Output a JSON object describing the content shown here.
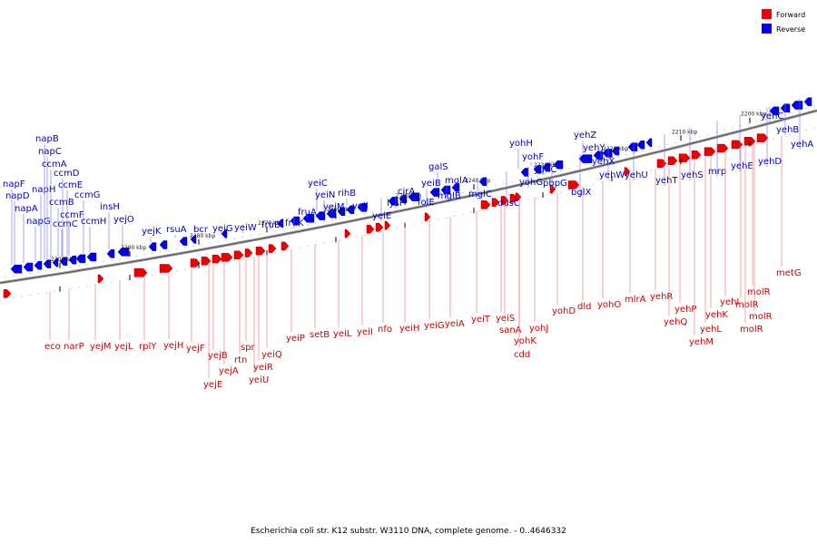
{
  "legend": [
    {
      "label": "Forward",
      "color": "#ee0000"
    },
    {
      "label": "Reverse",
      "color": "#0000ee"
    }
  ],
  "caption": "Escherichia coli str. K12 substr. W3110 DNA, complete genome. - 0..4646332",
  "ticks": [
    "2300 kbp",
    "2290 kbp",
    "2280 kbp",
    "2270 kbp",
    "2260 kbp",
    "2250 kbp",
    "2240 kbp",
    "2230 kbp",
    "2220 kbp",
    "2210 kbp",
    "2200 kbp"
  ],
  "reverse_genes": [
    "napF",
    "napD",
    "napA",
    "napG",
    "napH",
    "napB",
    "napC",
    "ccmA",
    "ccmB",
    "ccmC",
    "ccmD",
    "ccmE",
    "ccmF",
    "ccmG",
    "ccmH",
    "insH",
    "yejO",
    "yejK",
    "rsuA",
    "bcr",
    "yejG",
    "yeiW",
    "fruB",
    "fruK",
    "fruA",
    "yeiC",
    "yeiN",
    "yeiM",
    "rihB",
    "yeiJ",
    "yeiE",
    "lysP",
    "cirA",
    "folE",
    "yeiB",
    "galS",
    "mglB",
    "mglA",
    "mglC",
    "dusC",
    "yohH",
    "yohG",
    "yohF",
    "yohC",
    "pbpG",
    "bglX",
    "yehZ",
    "yehY",
    "yehX",
    "yehW",
    "yehU",
    "yehT",
    "yehS",
    "mrp",
    "yehE",
    "yehD",
    "yehC",
    "yehB",
    "yehA"
  ],
  "forward_genes": [
    "eco",
    "narP",
    "yejM",
    "yejL",
    "rplY",
    "yejH",
    "yejF",
    "yejE",
    "yejB",
    "yejA",
    "rtn",
    "spr",
    "yeiU",
    "yeiR",
    "yeiQ",
    "yeiP",
    "setB",
    "yeiL",
    "yeiI",
    "nfo",
    "yeiH",
    "yeiG",
    "yeiA",
    "yeiT",
    "yeiS",
    "sanA",
    "yohK",
    "cdd",
    "yohJ",
    "yohD",
    "dld",
    "yohO",
    "mlrA",
    "yehR",
    "yehQ",
    "yehP",
    "yehM",
    "yehL",
    "yehK",
    "yehI",
    "molR",
    "molR",
    "molR",
    "molR",
    "metG"
  ]
}
